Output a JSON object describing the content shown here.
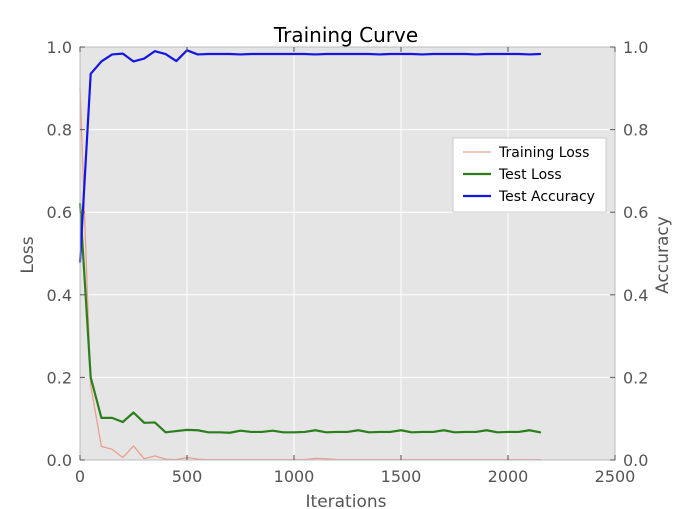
{
  "chart_data": {
    "type": "line",
    "title": "Training Curve",
    "xlabel": "Iterations",
    "ylabel": "Loss",
    "y2label": "Accuracy",
    "xlim": [
      0,
      2500
    ],
    "ylim": [
      0,
      1.0
    ],
    "y2lim": [
      0,
      1.0
    ],
    "xticks": [
      "0",
      "500",
      "1000",
      "1500",
      "2000",
      "2500"
    ],
    "yticks": [
      "0.0",
      "0.2",
      "0.4",
      "0.6",
      "0.8",
      "1.0"
    ],
    "y2ticks": [
      "0.0",
      "0.2",
      "0.4",
      "0.6",
      "0.8",
      "1.0"
    ],
    "grid": true,
    "legend_position": "center-right",
    "series": [
      {
        "name": "Training Loss",
        "axis": "left",
        "color": "#e8a08e",
        "x": [
          0,
          50,
          100,
          150,
          200,
          250,
          300,
          350,
          400,
          450,
          500,
          550,
          600,
          650,
          700,
          750,
          800,
          850,
          900,
          950,
          1000,
          1050,
          1100,
          1150,
          1200,
          1250,
          1300,
          1350,
          1400,
          1450,
          1500,
          1550,
          1600,
          1650,
          1700,
          1750,
          1800,
          1850,
          1900,
          1950,
          2000,
          2050,
          2100,
          2150
        ],
        "y": [
          0.9,
          0.18,
          0.033,
          0.026,
          0.006,
          0.034,
          0.003,
          0.01,
          0.002,
          0.001,
          0.006,
          0.002,
          0.001,
          0.001,
          0.001,
          0.001,
          0.001,
          0.001,
          0.001,
          0.001,
          0.001,
          0.001,
          0.004,
          0.003,
          0.001,
          0.001,
          0.001,
          0.001,
          0.001,
          0.001,
          0.001,
          0.001,
          0.001,
          0.001,
          0.001,
          0.001,
          0.001,
          0.001,
          0.001,
          0.001,
          0.001,
          0.001,
          0.001,
          0.001
        ]
      },
      {
        "name": "Test Loss",
        "axis": "left",
        "color": "#2a7f1c",
        "x": [
          0,
          50,
          100,
          150,
          200,
          250,
          300,
          350,
          400,
          450,
          500,
          550,
          600,
          650,
          700,
          750,
          800,
          850,
          900,
          950,
          1000,
          1050,
          1100,
          1150,
          1200,
          1250,
          1300,
          1350,
          1400,
          1450,
          1500,
          1550,
          1600,
          1650,
          1700,
          1750,
          1800,
          1850,
          1900,
          1950,
          2000,
          2050,
          2100,
          2150
        ],
        "y": [
          0.62,
          0.2,
          0.102,
          0.102,
          0.092,
          0.115,
          0.09,
          0.091,
          0.067,
          0.07,
          0.073,
          0.072,
          0.067,
          0.067,
          0.066,
          0.071,
          0.068,
          0.068,
          0.071,
          0.067,
          0.067,
          0.068,
          0.072,
          0.067,
          0.068,
          0.068,
          0.072,
          0.067,
          0.068,
          0.068,
          0.072,
          0.067,
          0.068,
          0.068,
          0.072,
          0.067,
          0.068,
          0.068,
          0.072,
          0.067,
          0.068,
          0.068,
          0.072,
          0.067
        ]
      },
      {
        "name": "Test Accuracy",
        "axis": "right",
        "color": "#1515e6",
        "x": [
          0,
          50,
          100,
          150,
          200,
          250,
          300,
          350,
          400,
          450,
          500,
          550,
          600,
          650,
          700,
          750,
          800,
          850,
          900,
          950,
          1000,
          1050,
          1100,
          1150,
          1200,
          1250,
          1300,
          1350,
          1400,
          1450,
          1500,
          1550,
          1600,
          1650,
          1700,
          1750,
          1800,
          1850,
          1900,
          1950,
          2000,
          2050,
          2100,
          2150
        ],
        "y": [
          0.48,
          0.935,
          0.965,
          0.982,
          0.984,
          0.965,
          0.972,
          0.99,
          0.983,
          0.966,
          0.992,
          0.982,
          0.983,
          0.983,
          0.983,
          0.982,
          0.983,
          0.983,
          0.983,
          0.983,
          0.983,
          0.983,
          0.982,
          0.983,
          0.983,
          0.983,
          0.983,
          0.983,
          0.982,
          0.983,
          0.983,
          0.983,
          0.982,
          0.983,
          0.983,
          0.983,
          0.983,
          0.982,
          0.983,
          0.983,
          0.983,
          0.983,
          0.982,
          0.983
        ]
      }
    ]
  }
}
